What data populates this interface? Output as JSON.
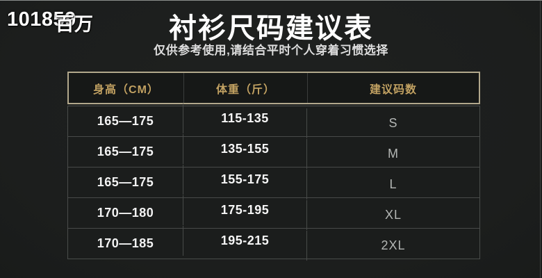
{
  "watermark": {
    "prefix": "1018",
    "overlay_digits": "59",
    "overlay_chars": "百万"
  },
  "chart_data": {
    "type": "table",
    "title": "衬衫尺码建议表",
    "subtitle": "仅供参考使用,请结合平时个人穿着习惯选择",
    "columns": [
      "身高（CM）",
      "体重（斤）",
      "建议码数"
    ],
    "rows": [
      [
        "165—175",
        "115-135",
        "S"
      ],
      [
        "165—175",
        "135-155",
        "M"
      ],
      [
        "165—175",
        "155-175",
        "L"
      ],
      [
        "170—180",
        "175-195",
        "XL"
      ],
      [
        "170—185",
        "195-215",
        "2XL"
      ]
    ]
  },
  "colors": {
    "background": "#1d1f1e",
    "accent_gold_text": "#c2a263",
    "header_border": "#b2a88c",
    "body_border": "#4a4d4b",
    "value_text": "#f3f3f3",
    "size_text": "#b4b7b5"
  }
}
